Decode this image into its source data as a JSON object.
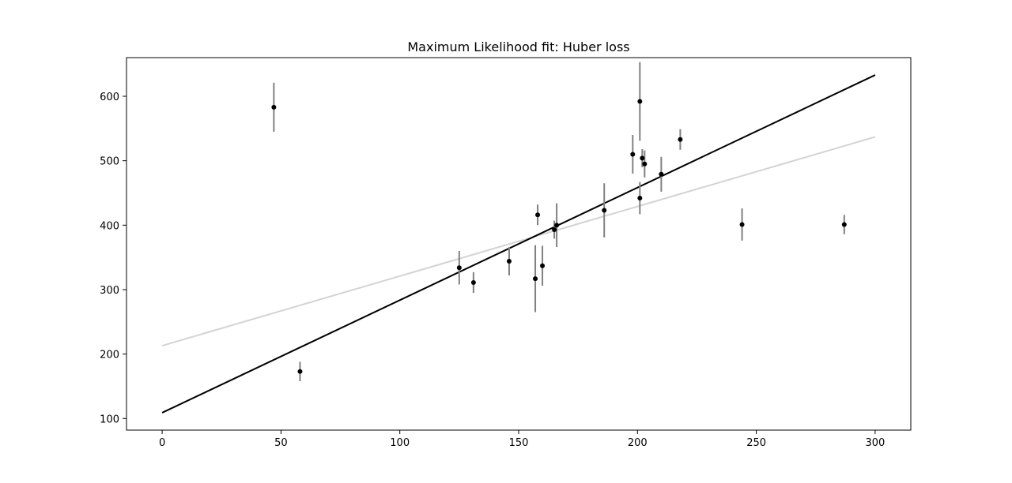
{
  "chart_data": {
    "type": "scatter",
    "title": "Maximum Likelihood fit: Huber loss",
    "xlabel": "",
    "ylabel": "",
    "xlim": [
      -15,
      315
    ],
    "ylim": [
      82,
      660
    ],
    "xticks": [
      0,
      50,
      100,
      150,
      200,
      250,
      300
    ],
    "yticks": [
      100,
      200,
      300,
      400,
      500,
      600
    ],
    "grid": false,
    "colors": {
      "points": "#000000",
      "errorbars": "#808080",
      "huber_fit": "#000000",
      "reference_fit": "#d3d3d3"
    },
    "points": [
      {
        "x": 47,
        "y": 583,
        "err": 38
      },
      {
        "x": 58,
        "y": 173,
        "err": 15
      },
      {
        "x": 125,
        "y": 334,
        "err": 26
      },
      {
        "x": 131,
        "y": 311,
        "err": 16
      },
      {
        "x": 146,
        "y": 344,
        "err": 22
      },
      {
        "x": 157,
        "y": 317,
        "err": 52
      },
      {
        "x": 158,
        "y": 416,
        "err": 16
      },
      {
        "x": 160,
        "y": 337,
        "err": 31
      },
      {
        "x": 165,
        "y": 393,
        "err": 14
      },
      {
        "x": 166,
        "y": 400,
        "err": 34
      },
      {
        "x": 186,
        "y": 423,
        "err": 42
      },
      {
        "x": 198,
        "y": 510,
        "err": 30
      },
      {
        "x": 201,
        "y": 442,
        "err": 25
      },
      {
        "x": 201,
        "y": 592,
        "err": 61
      },
      {
        "x": 202,
        "y": 504,
        "err": 14
      },
      {
        "x": 203,
        "y": 495,
        "err": 21
      },
      {
        "x": 210,
        "y": 479,
        "err": 27
      },
      {
        "x": 218,
        "y": 533,
        "err": 16
      },
      {
        "x": 244,
        "y": 401,
        "err": 25
      },
      {
        "x": 287,
        "y": 401,
        "err": 15
      }
    ],
    "lines": [
      {
        "role": "huber-fit-line",
        "x": [
          0,
          300
        ],
        "y": [
          109,
          633
        ]
      },
      {
        "role": "reference-fit-line",
        "x": [
          0,
          300
        ],
        "y": [
          213,
          537
        ]
      }
    ]
  }
}
